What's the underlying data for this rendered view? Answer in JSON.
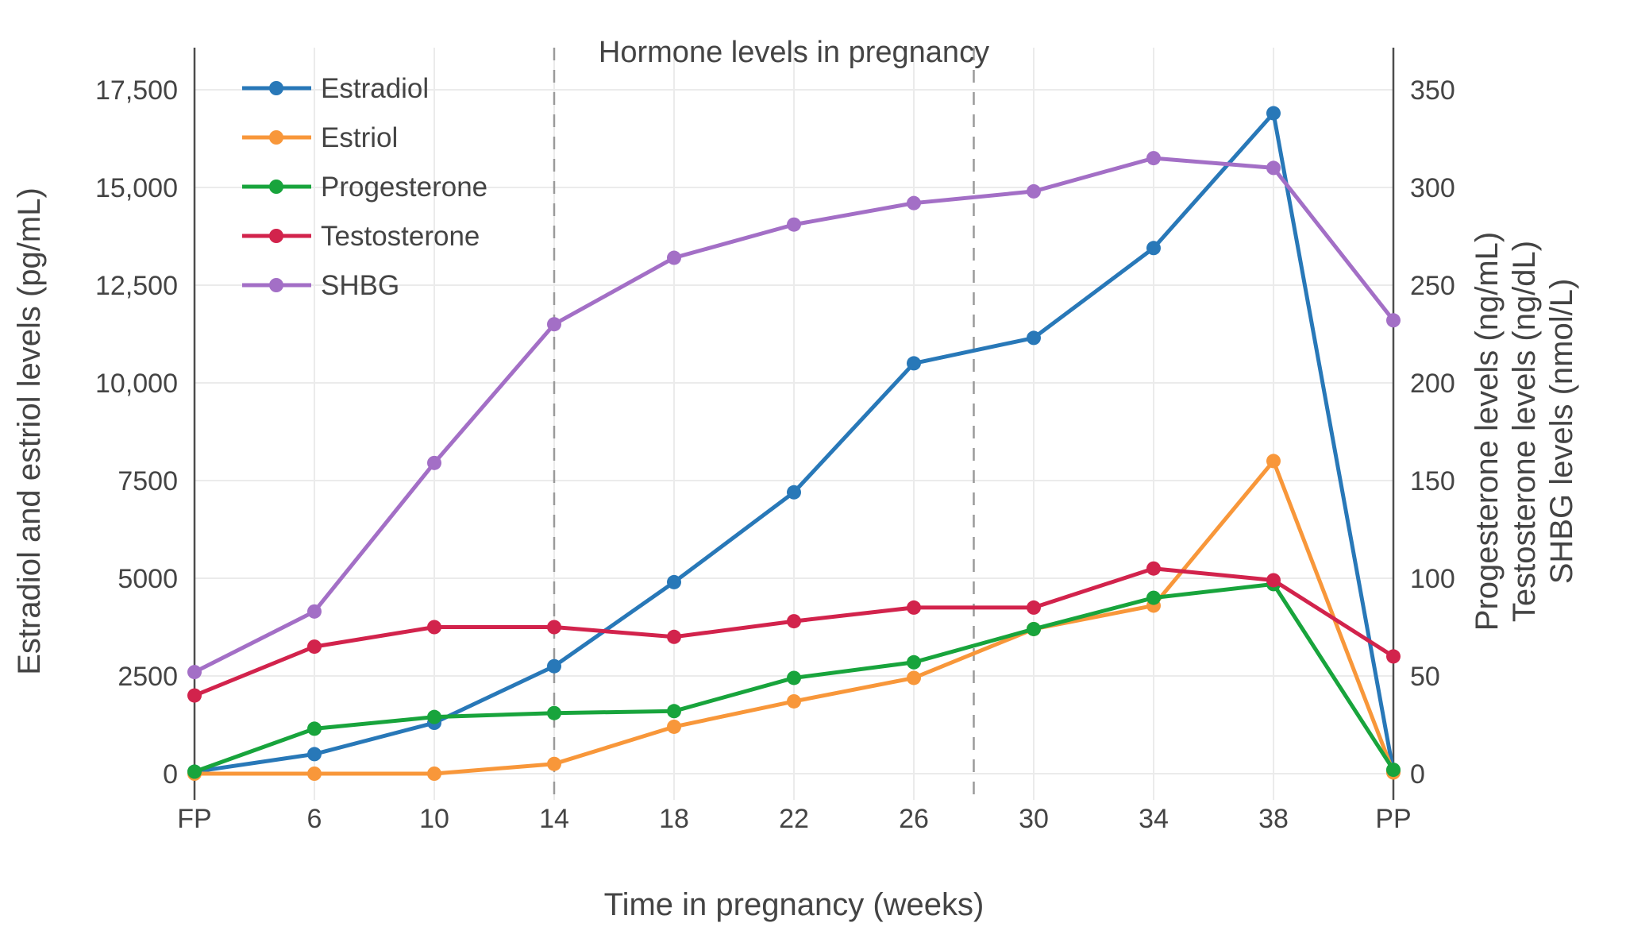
{
  "chart_data": {
    "type": "line",
    "title": "Hormone levels in pregnancy",
    "xlabel": "Time in pregnancy (weeks)",
    "ylabel_left": "Estradiol and estriol levels (pg/mL)",
    "ylabel_right_lines": [
      "Progesterone levels (ng/mL)",
      "Testosterone levels (ng/dL)",
      "SHBG levels (nmol/L)"
    ],
    "categories": [
      "FP",
      "6",
      "10",
      "14",
      "18",
      "22",
      "26",
      "30",
      "34",
      "38",
      "PP"
    ],
    "left_axis": {
      "tick_labels": [
        "0",
        "2500",
        "5000",
        "7500",
        "10,000",
        "12,500",
        "15,000",
        "17,500"
      ],
      "tick_values": [
        0,
        2500,
        5000,
        7500,
        10000,
        12500,
        15000,
        17500
      ],
      "max_tick": 17500
    },
    "right_axis": {
      "tick_labels": [
        "0",
        "50",
        "100",
        "150",
        "200",
        "250",
        "300",
        "350"
      ],
      "tick_values": [
        0,
        50,
        100,
        150,
        200,
        250,
        300,
        350
      ],
      "max_tick": 350
    },
    "dashed_lines_at_weeks": [
      14,
      28
    ],
    "grid": true,
    "legend_position": "top-left-inside",
    "colors": {
      "grid": "#ebebeb",
      "dashed_line": "#9a9a9a",
      "axis_line": "#4d4d4d",
      "title_text": "#555555",
      "tick_text": "#444444"
    },
    "series": [
      {
        "name": "Estradiol",
        "axis": "left",
        "unit": "pg/mL",
        "color": "#2878b8",
        "values": [
          50,
          500,
          1300,
          2750,
          4900,
          7200,
          10500,
          11150,
          13450,
          16900,
          50
        ]
      },
      {
        "name": "Estriol",
        "axis": "left",
        "unit": "pg/mL",
        "color": "#f8973a",
        "values": [
          0,
          0,
          0,
          250,
          1200,
          1850,
          2450,
          3700,
          4300,
          8000,
          30
        ]
      },
      {
        "name": "Progesterone",
        "axis": "right",
        "unit": "ng/mL",
        "color": "#18a43c",
        "values": [
          1,
          23,
          29,
          31,
          32,
          49,
          57,
          74,
          90,
          97,
          2
        ]
      },
      {
        "name": "Testosterone",
        "axis": "right",
        "unit": "ng/dL",
        "color": "#d2234c",
        "values": [
          40,
          65,
          75,
          75,
          70,
          78,
          85,
          85,
          105,
          99,
          60
        ]
      },
      {
        "name": "SHBG",
        "axis": "right",
        "unit": "nmol/L",
        "color": "#a36fc6",
        "values": [
          52,
          83,
          159,
          230,
          264,
          281,
          292,
          298,
          315,
          310,
          232
        ]
      }
    ]
  }
}
